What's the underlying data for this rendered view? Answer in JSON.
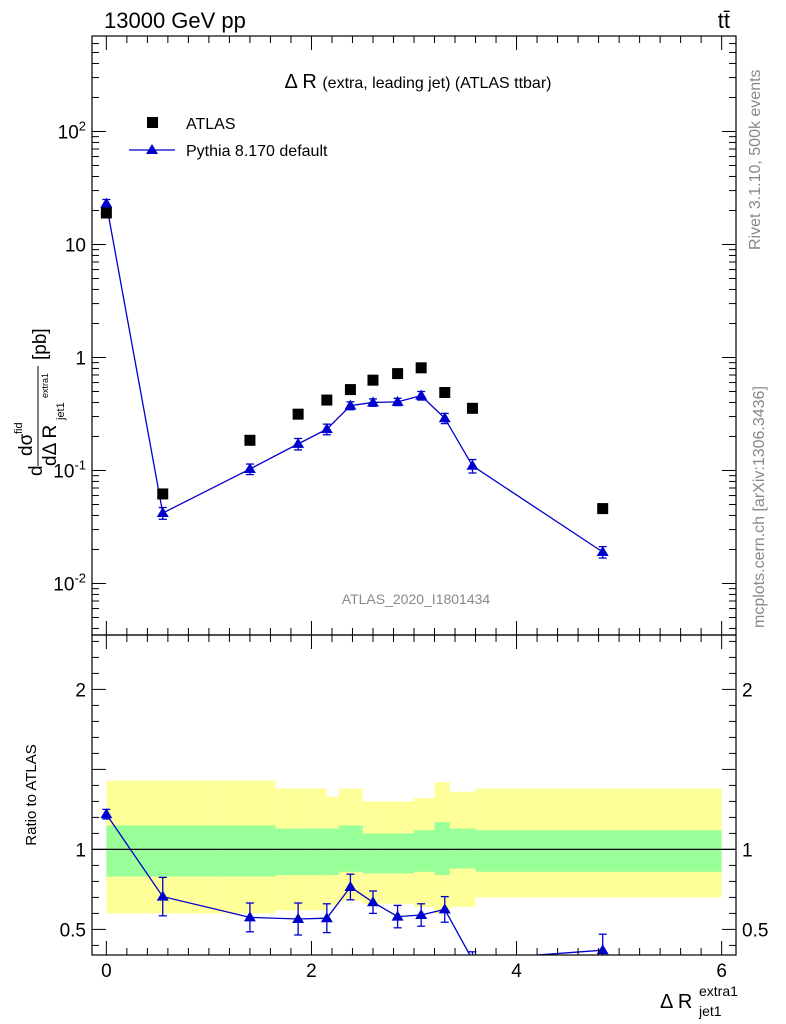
{
  "header": {
    "energy_label": "13000 GeV pp",
    "process_label": "tt̄"
  },
  "side_labels": {
    "rivet": "Rivet 3.1.10,  500k events",
    "mcplots": "mcplots.cern.ch [arXiv:1306.3436]"
  },
  "chart_data": [
    {
      "type": "scatter",
      "panel": "main",
      "title_main": "Δ R",
      "title_rest": "(extra, leading jet) (ATLAS ttbar)",
      "watermark": "ATLAS_2020_I1801434",
      "ylabel": "dσ^fid / dΔ R^extra1_jet1 [pb]",
      "yscale": "log",
      "ylim": [
        0.0035,
        700
      ],
      "xlim": [
        -0.14,
        6.14
      ],
      "ytick_labels": [
        "10^-2",
        "10^-1",
        "1",
        "10",
        "10^2"
      ],
      "legend_position": "top-left",
      "series": [
        {
          "name": "ATLAS",
          "marker": "square",
          "color": "#000000",
          "x": [
            0.0,
            0.55,
            1.4,
            1.87,
            2.15,
            2.38,
            2.6,
            2.84,
            3.07,
            3.3,
            3.57,
            4.84
          ],
          "y": [
            19.0,
            0.062,
            0.185,
            0.315,
            0.42,
            0.52,
            0.63,
            0.72,
            0.81,
            0.49,
            0.355,
            0.046
          ]
        },
        {
          "name": "Pythia 8.170 default",
          "marker": "triangle",
          "color": "#0000cc",
          "x": [
            0.0,
            0.55,
            1.4,
            1.87,
            2.15,
            2.38,
            2.6,
            2.84,
            3.07,
            3.3,
            3.57,
            4.84
          ],
          "y": [
            23.0,
            0.042,
            0.103,
            0.172,
            0.232,
            0.375,
            0.4,
            0.405,
            0.46,
            0.29,
            0.11,
            0.019
          ],
          "err_lo": [
            2.0,
            0.005,
            0.011,
            0.02,
            0.025,
            0.03,
            0.03,
            0.03,
            0.04,
            0.03,
            0.015,
            0.0022
          ],
          "err_hi": [
            2.0,
            0.005,
            0.011,
            0.02,
            0.025,
            0.03,
            0.03,
            0.03,
            0.04,
            0.03,
            0.015,
            0.0022
          ]
        }
      ]
    },
    {
      "type": "line",
      "panel": "ratio",
      "ylabel": "Ratio to ATLAS",
      "xlabel": "Δ R^extra1_jet1",
      "ylim": [
        0.34,
        2.34
      ],
      "xlim": [
        -0.14,
        6.14
      ],
      "xtick_labels": [
        "0",
        "2",
        "4",
        "6"
      ],
      "ytick_labels": [
        "0.5",
        "1",
        "2"
      ],
      "reference_line": 1.0,
      "uncertainty_bands": {
        "bin_edges": [
          0.0,
          1.08,
          1.65,
          2.0,
          2.15,
          2.27,
          2.5,
          2.7,
          3.0,
          3.2,
          3.35,
          3.6,
          6.0
        ],
        "total_lo": [
          0.6,
          0.6,
          0.62,
          0.62,
          0.65,
          0.68,
          0.66,
          0.66,
          0.64,
          0.6,
          0.64,
          0.7
        ],
        "total_hi": [
          1.43,
          1.43,
          1.38,
          1.38,
          1.33,
          1.38,
          1.3,
          1.3,
          1.32,
          1.42,
          1.36,
          1.38
        ],
        "stat_lo": [
          0.83,
          0.83,
          0.84,
          0.84,
          0.84,
          0.86,
          0.85,
          0.85,
          0.86,
          0.84,
          0.88,
          0.86
        ],
        "stat_hi": [
          1.15,
          1.15,
          1.13,
          1.13,
          1.13,
          1.15,
          1.1,
          1.1,
          1.12,
          1.17,
          1.13,
          1.12
        ],
        "total_color": "#ffff99",
        "stat_color": "#99ff99"
      },
      "series": [
        {
          "name": "Pythia 8.170 default",
          "color": "#0000cc",
          "x": [
            0.0,
            0.55,
            1.4,
            1.87,
            2.15,
            2.38,
            2.6,
            2.84,
            3.07,
            3.3,
            3.57,
            4.84
          ],
          "y": [
            1.22,
            0.705,
            0.575,
            0.565,
            0.57,
            0.765,
            0.67,
            0.58,
            0.59,
            0.625,
            0.31,
            0.37
          ],
          "err_lo": [
            0.03,
            0.12,
            0.09,
            0.1,
            0.09,
            0.08,
            0.07,
            0.07,
            0.07,
            0.08,
            0.05,
            0.1
          ],
          "err_hi": [
            0.03,
            0.12,
            0.09,
            0.1,
            0.09,
            0.08,
            0.07,
            0.07,
            0.07,
            0.08,
            0.05,
            0.1
          ]
        }
      ]
    }
  ]
}
